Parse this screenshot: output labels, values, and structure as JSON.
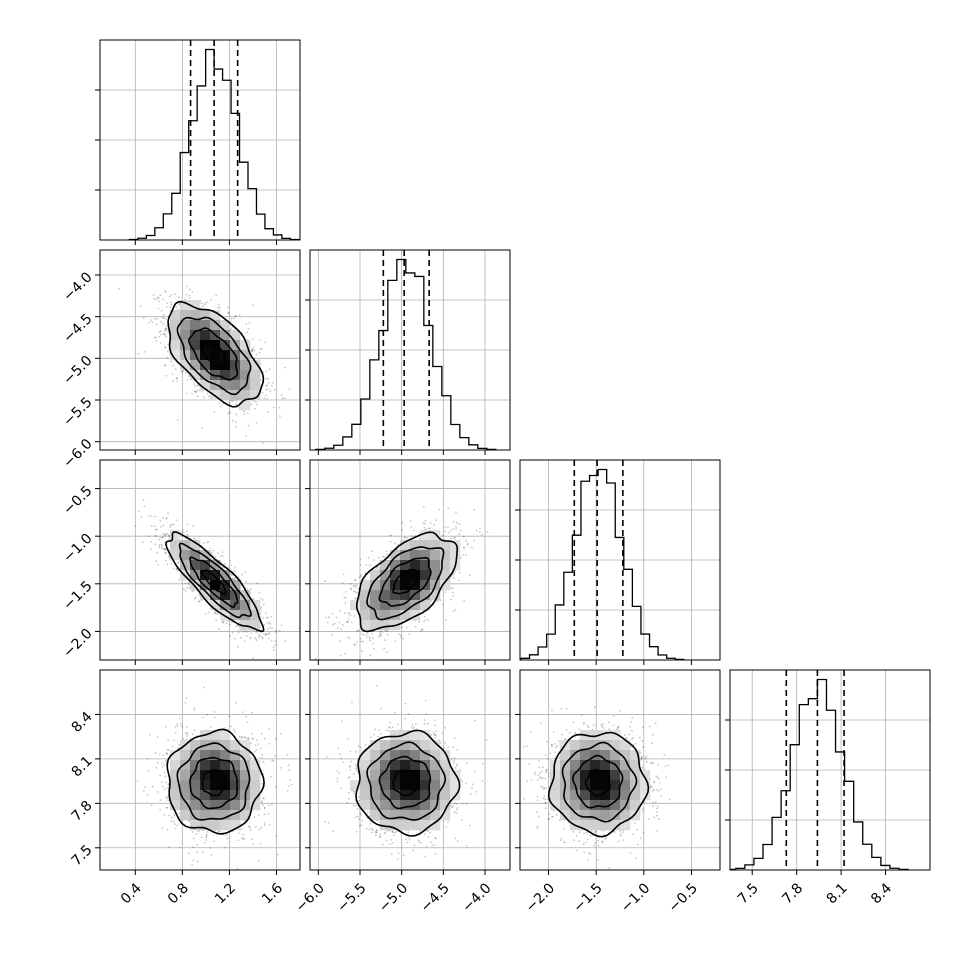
{
  "chart_data": {
    "type": "corner",
    "title": "",
    "parameters": [
      {
        "range": [
          0.1,
          1.8
        ],
        "ticks": [
          0.4,
          0.8,
          1.2,
          1.6
        ],
        "tick_labels": [
          "0.4",
          "0.8",
          "1.2",
          "1.6"
        ],
        "mean": 1.07,
        "sd": 0.2,
        "quantiles": [
          0.87,
          1.07,
          1.27
        ]
      },
      {
        "range": [
          -6.1,
          -3.7
        ],
        "ticks": [
          -6.0,
          -5.5,
          -5.0,
          -4.5,
          -4.0
        ],
        "tick_labels": [
          "−6.0",
          "−5.5",
          "−5.0",
          "−4.5",
          "−4.0"
        ],
        "mean": -4.95,
        "sd": 0.3,
        "quantiles": [
          -5.22,
          -4.97,
          -4.67
        ]
      },
      {
        "range": [
          -2.3,
          -0.2
        ],
        "ticks": [
          -2.0,
          -1.5,
          -1.0,
          -0.5
        ],
        "tick_labels": [
          "−2.0",
          "−1.5",
          "−1.0",
          "−0.5"
        ],
        "mean": -1.48,
        "sd": 0.25,
        "quantiles": [
          -1.73,
          -1.49,
          -1.22
        ]
      },
      {
        "range": [
          7.35,
          8.7
        ],
        "ticks": [
          7.5,
          7.8,
          8.1,
          8.4
        ],
        "tick_labels": [
          "7.5",
          "7.8",
          "8.1",
          "8.4"
        ],
        "mean": 7.94,
        "sd": 0.17,
        "quantiles": [
          7.73,
          7.94,
          8.12
        ]
      }
    ],
    "correlations": [
      {
        "row": 1,
        "col": 0,
        "r": -0.55
      },
      {
        "row": 2,
        "col": 0,
        "r": -0.85
      },
      {
        "row": 2,
        "col": 1,
        "r": 0.55
      },
      {
        "row": 3,
        "col": 0,
        "r": 0.0
      },
      {
        "row": 3,
        "col": 1,
        "r": 0.0
      },
      {
        "row": 3,
        "col": 2,
        "r": 0.0
      }
    ],
    "histogram_bins": 20,
    "contour_levels_sigma": [
      0.5,
      1.0,
      1.5,
      2.0
    ],
    "grid": true,
    "colors": {
      "ink": "#000000",
      "grid": "#b0b0b0",
      "background": "#ffffff"
    }
  }
}
